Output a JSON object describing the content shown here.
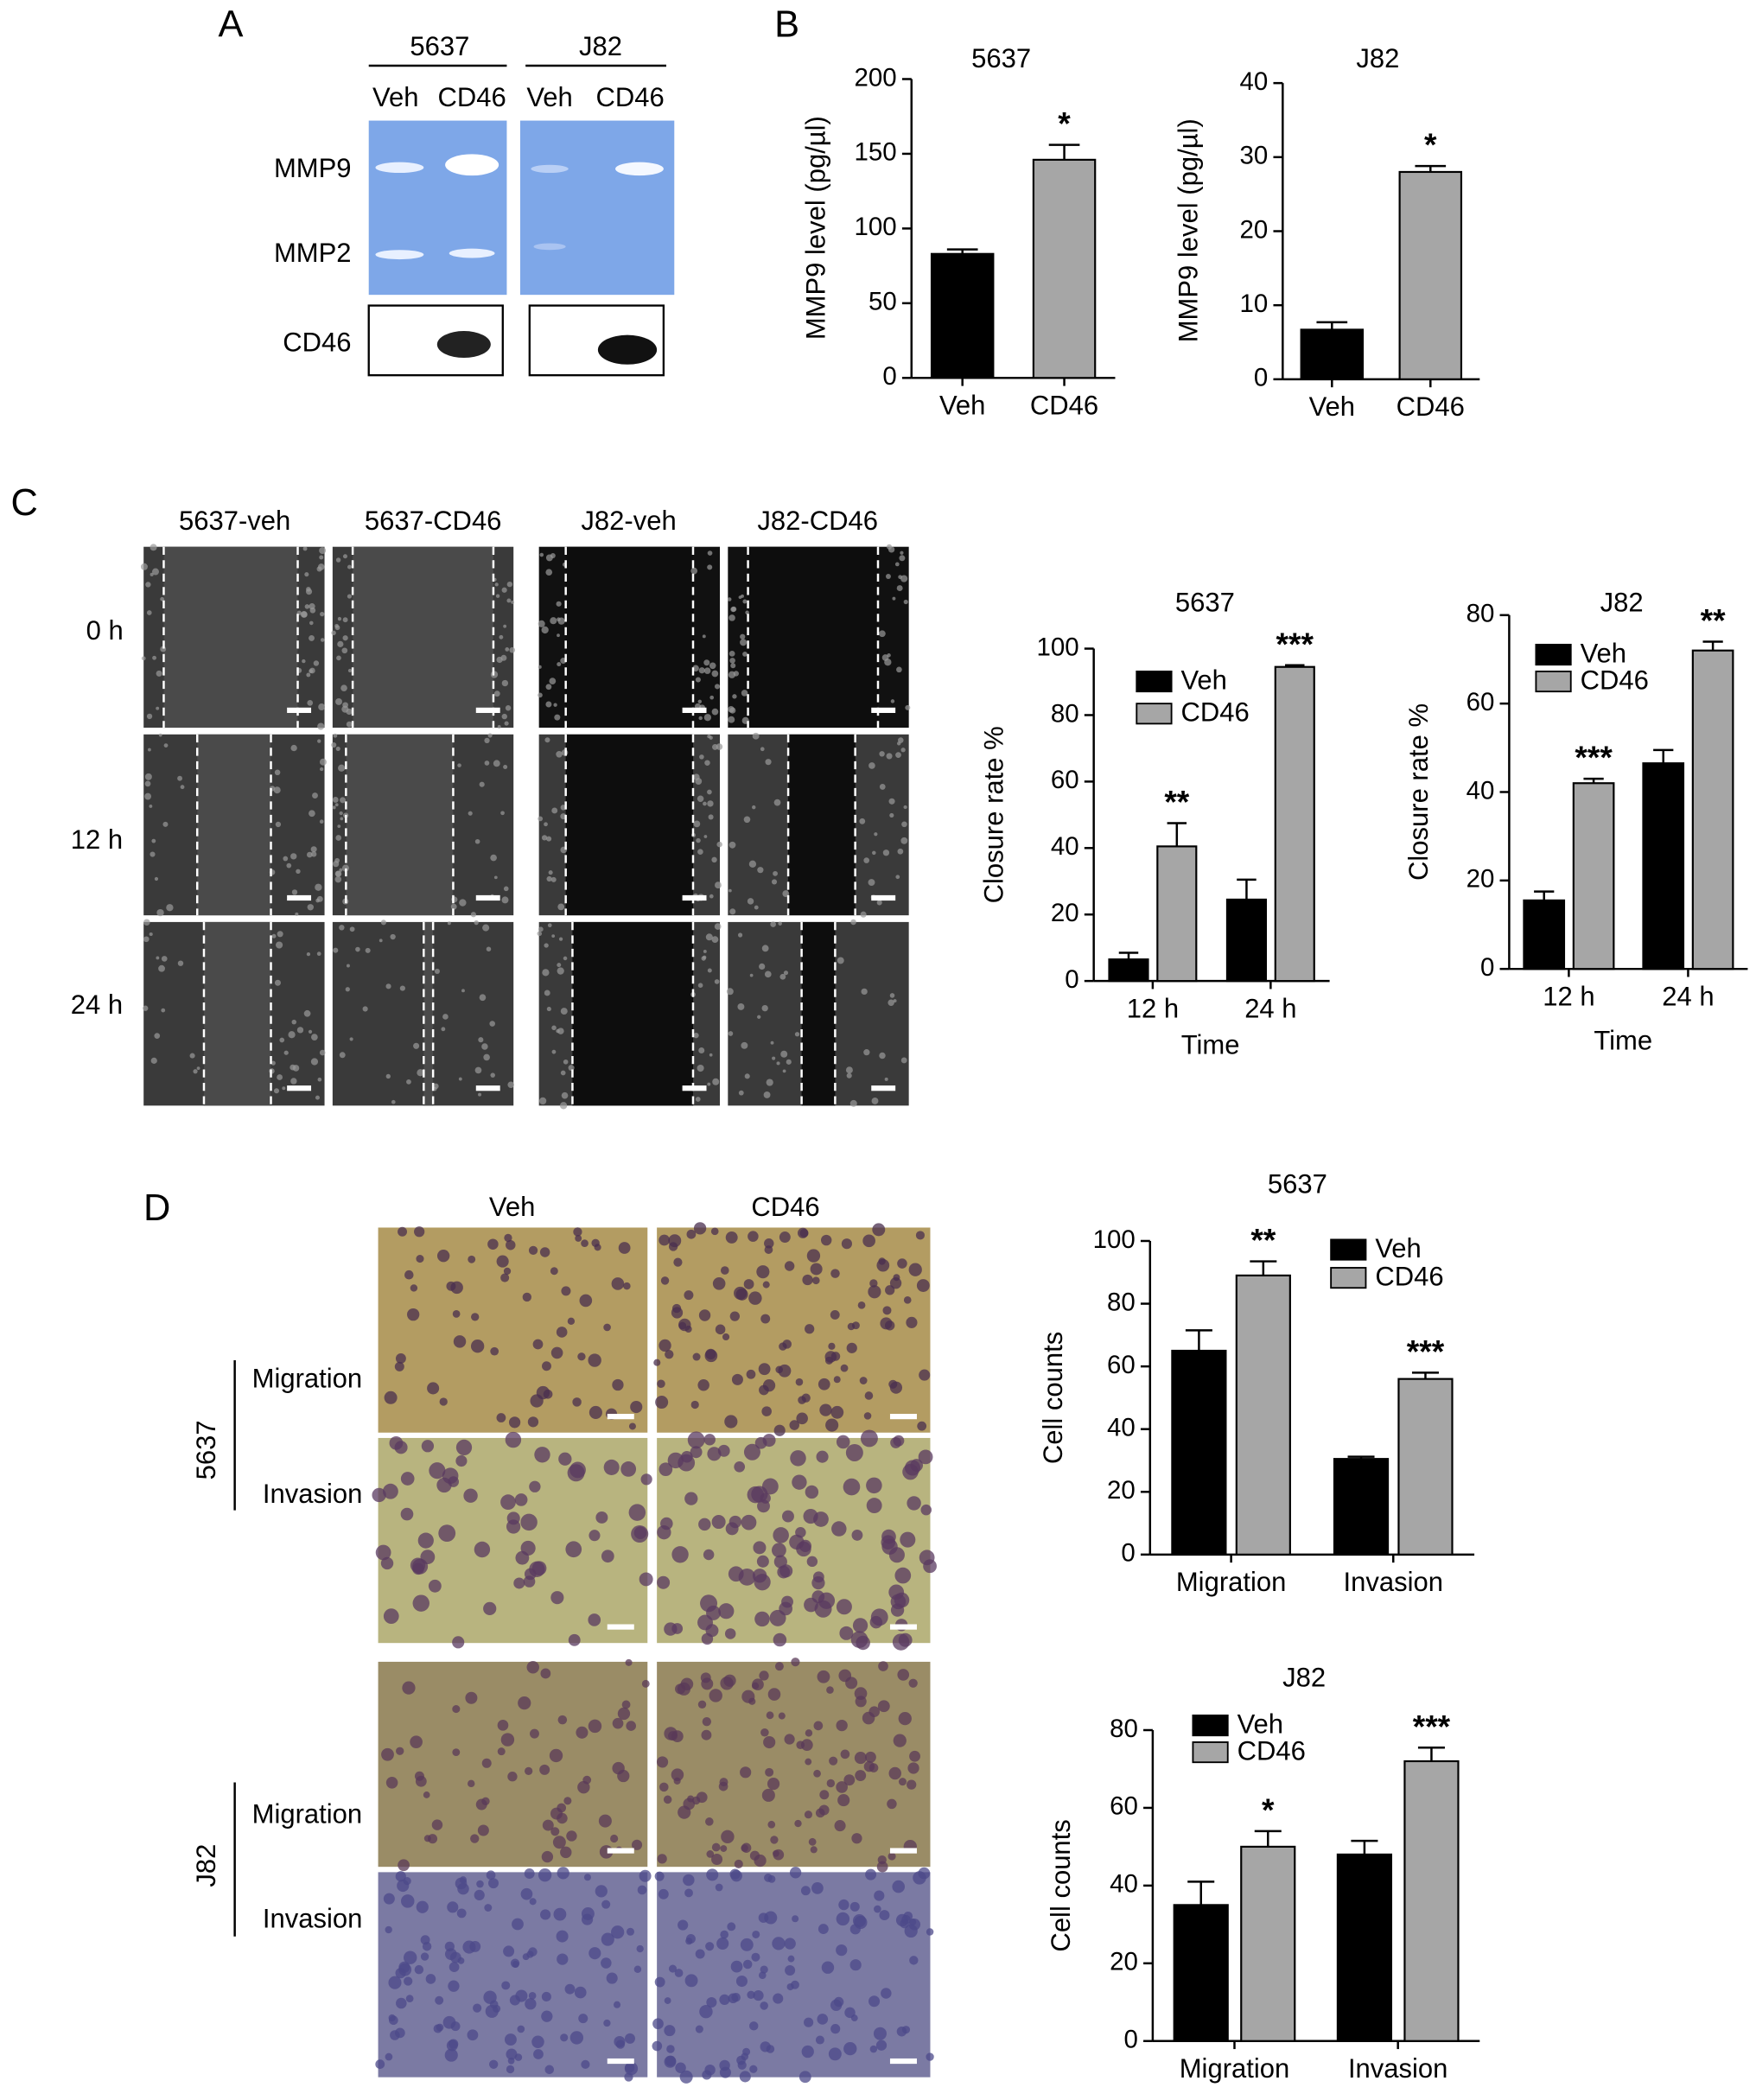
{
  "figure": {
    "panel_labels": [
      "A",
      "B",
      "C",
      "D"
    ],
    "gel": {
      "cell_lines": [
        "5637",
        "J82"
      ],
      "lanes": [
        "Veh",
        "CD46",
        "Veh",
        "CD46"
      ],
      "rows": [
        "MMP9",
        "MMP2",
        "CD46"
      ]
    },
    "wound": {
      "columns": [
        "5637-veh",
        "5637-CD46",
        "J82-veh",
        "J82-CD46"
      ],
      "rows": [
        "0 h",
        "12 h",
        "24 h"
      ]
    },
    "transwell": {
      "columns": [
        "Veh",
        "CD46"
      ],
      "cell_lines": [
        "5637",
        "J82"
      ],
      "assays": [
        "Migration",
        "Invasion"
      ]
    }
  },
  "chart_data": [
    {
      "type": "bar",
      "title": "5637",
      "y_label": "MMP9 level (pg/µl)",
      "categories": [
        "Veh",
        "CD46"
      ],
      "values": [
        83,
        146
      ],
      "errors": [
        3,
        10
      ],
      "colors": [
        "#000000",
        "#a6a6a6"
      ],
      "annotations": [
        null,
        "*"
      ],
      "ylim": [
        0,
        200
      ],
      "yticks": [
        0,
        50,
        100,
        150,
        200
      ]
    },
    {
      "type": "bar",
      "title": "J82",
      "y_label": "MMP9 level (pg/µl)",
      "categories": [
        "Veh",
        "CD46"
      ],
      "values": [
        6.7,
        28
      ],
      "errors": [
        1,
        0.8
      ],
      "colors": [
        "#000000",
        "#a6a6a6"
      ],
      "annotations": [
        null,
        "*"
      ],
      "ylim": [
        0,
        40
      ],
      "yticks": [
        0,
        10,
        20,
        30,
        40
      ]
    },
    {
      "type": "grouped_bar",
      "title": "5637",
      "x_label": "Time",
      "y_label": "Closure rate %",
      "categories": [
        "12 h",
        "24 h"
      ],
      "series": [
        {
          "name": "Veh",
          "color": "#000000",
          "values": [
            6.5,
            24.5
          ],
          "errors": [
            2,
            6
          ]
        },
        {
          "name": "CD46",
          "color": "#a6a6a6",
          "values": [
            40.5,
            94.5
          ],
          "errors": [
            7,
            0.5
          ],
          "annotations": [
            "**",
            "***"
          ]
        }
      ],
      "ylim": [
        0,
        100
      ],
      "yticks": [
        0,
        20,
        40,
        60,
        80,
        100
      ]
    },
    {
      "type": "grouped_bar",
      "title": "J82",
      "x_label": "Time",
      "y_label": "Closure rate %",
      "categories": [
        "12 h",
        "24 h"
      ],
      "series": [
        {
          "name": "Veh",
          "color": "#000000",
          "values": [
            15.5,
            46.5
          ],
          "errors": [
            2,
            3
          ]
        },
        {
          "name": "CD46",
          "color": "#a6a6a6",
          "values": [
            42,
            72
          ],
          "errors": [
            1,
            2
          ],
          "annotations": [
            "***",
            "**"
          ]
        }
      ],
      "ylim": [
        0,
        80
      ],
      "yticks": [
        0,
        20,
        40,
        60,
        80
      ]
    },
    {
      "type": "grouped_bar",
      "title": "5637",
      "y_label": "Cell counts",
      "categories": [
        "Migration",
        "Invasion"
      ],
      "series": [
        {
          "name": "Veh",
          "color": "#000000",
          "values": [
            65,
            30.5
          ],
          "errors": [
            6.5,
            0.7
          ]
        },
        {
          "name": "CD46",
          "color": "#a6a6a6",
          "values": [
            89,
            56
          ],
          "errors": [
            4.5,
            2
          ],
          "annotations": [
            "**",
            "***"
          ]
        }
      ],
      "ylim": [
        0,
        100
      ],
      "yticks": [
        0,
        20,
        40,
        60,
        80,
        100
      ]
    },
    {
      "type": "grouped_bar",
      "title": "J82",
      "y_label": "Cell counts",
      "categories": [
        "Migration",
        "Invasion"
      ],
      "series": [
        {
          "name": "Veh",
          "color": "#000000",
          "values": [
            35,
            48
          ],
          "errors": [
            6,
            3.5
          ]
        },
        {
          "name": "CD46",
          "color": "#a6a6a6",
          "values": [
            50,
            72
          ],
          "errors": [
            4,
            3.5
          ],
          "annotations": [
            "*",
            "***"
          ]
        }
      ],
      "ylim": [
        0,
        80
      ],
      "yticks": [
        0,
        20,
        40,
        60,
        80
      ]
    }
  ]
}
